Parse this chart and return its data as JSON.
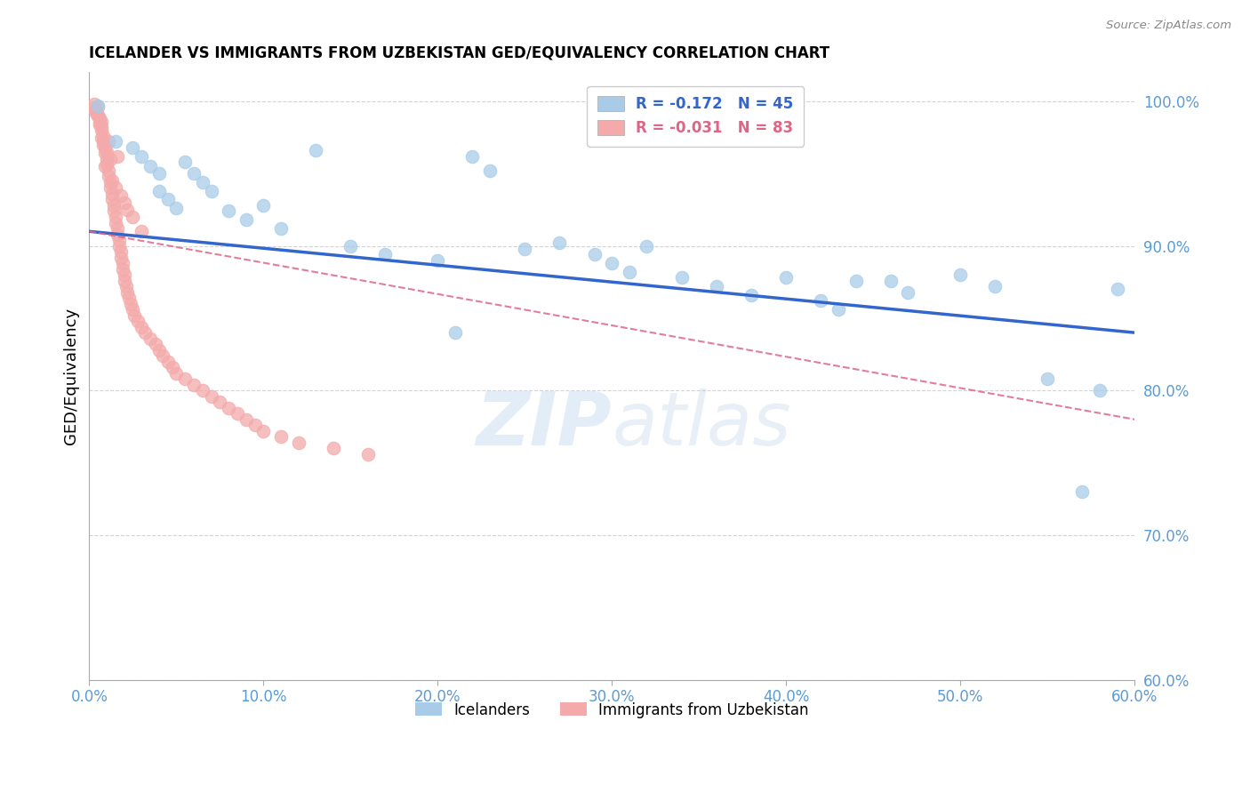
{
  "title": "ICELANDER VS IMMIGRANTS FROM UZBEKISTAN GED/EQUIVALENCY CORRELATION CHART",
  "source": "Source: ZipAtlas.com",
  "ylabel": "GED/Equivalency",
  "xmin": 0.0,
  "xmax": 0.6,
  "ymin": 0.6,
  "ymax": 1.02,
  "yticks": [
    0.6,
    0.7,
    0.8,
    0.9,
    1.0
  ],
  "xticks": [
    0.0,
    0.1,
    0.2,
    0.3,
    0.4,
    0.5,
    0.6
  ],
  "blue_label": "Icelanders",
  "pink_label": "Immigrants from Uzbekistan",
  "blue_R": "-0.172",
  "blue_N": "45",
  "pink_R": "-0.031",
  "pink_N": "83",
  "blue_color": "#A8CCE8",
  "pink_color": "#F4AAAA",
  "blue_line_color": "#3366CC",
  "pink_line_color": "#DD6688",
  "watermark_zip": "ZIP",
  "watermark_atlas": "atlas",
  "blue_scatter_x": [
    0.005,
    0.015,
    0.025,
    0.03,
    0.035,
    0.04,
    0.04,
    0.045,
    0.05,
    0.055,
    0.06,
    0.065,
    0.07,
    0.08,
    0.09,
    0.1,
    0.11,
    0.13,
    0.15,
    0.17,
    0.2,
    0.22,
    0.23,
    0.25,
    0.27,
    0.29,
    0.3,
    0.31,
    0.32,
    0.34,
    0.36,
    0.38,
    0.4,
    0.42,
    0.43,
    0.44,
    0.46,
    0.47,
    0.5,
    0.52,
    0.55,
    0.57,
    0.58,
    0.59,
    0.21
  ],
  "blue_scatter_y": [
    0.997,
    0.972,
    0.968,
    0.962,
    0.955,
    0.95,
    0.938,
    0.932,
    0.926,
    0.958,
    0.95,
    0.944,
    0.938,
    0.924,
    0.918,
    0.928,
    0.912,
    0.966,
    0.9,
    0.894,
    0.89,
    0.962,
    0.952,
    0.898,
    0.902,
    0.894,
    0.888,
    0.882,
    0.9,
    0.878,
    0.872,
    0.866,
    0.878,
    0.862,
    0.856,
    0.876,
    0.876,
    0.868,
    0.88,
    0.872,
    0.808,
    0.73,
    0.8,
    0.87,
    0.84
  ],
  "pink_scatter_x": [
    0.003,
    0.004,
    0.005,
    0.005,
    0.006,
    0.006,
    0.007,
    0.007,
    0.008,
    0.008,
    0.009,
    0.009,
    0.01,
    0.01,
    0.011,
    0.011,
    0.012,
    0.012,
    0.013,
    0.013,
    0.014,
    0.014,
    0.015,
    0.015,
    0.016,
    0.016,
    0.017,
    0.017,
    0.018,
    0.018,
    0.019,
    0.019,
    0.02,
    0.02,
    0.021,
    0.022,
    0.023,
    0.024,
    0.025,
    0.026,
    0.028,
    0.03,
    0.032,
    0.035,
    0.038,
    0.04,
    0.042,
    0.045,
    0.048,
    0.05,
    0.055,
    0.06,
    0.065,
    0.07,
    0.075,
    0.08,
    0.085,
    0.09,
    0.095,
    0.1,
    0.11,
    0.12,
    0.14,
    0.16,
    0.02,
    0.025,
    0.03,
    0.008,
    0.012,
    0.015,
    0.007,
    0.01,
    0.006,
    0.009,
    0.013,
    0.018,
    0.022,
    0.005,
    0.004,
    0.003,
    0.007,
    0.011,
    0.016
  ],
  "pink_scatter_y": [
    0.998,
    0.994,
    0.996,
    0.99,
    0.988,
    0.984,
    0.986,
    0.98,
    0.976,
    0.972,
    0.968,
    0.964,
    0.96,
    0.956,
    0.952,
    0.948,
    0.944,
    0.94,
    0.936,
    0.932,
    0.928,
    0.924,
    0.92,
    0.916,
    0.912,
    0.908,
    0.904,
    0.9,
    0.896,
    0.892,
    0.888,
    0.884,
    0.88,
    0.876,
    0.872,
    0.868,
    0.864,
    0.86,
    0.856,
    0.852,
    0.848,
    0.844,
    0.84,
    0.836,
    0.832,
    0.828,
    0.824,
    0.82,
    0.816,
    0.812,
    0.808,
    0.804,
    0.8,
    0.796,
    0.792,
    0.788,
    0.784,
    0.78,
    0.776,
    0.772,
    0.768,
    0.764,
    0.76,
    0.756,
    0.93,
    0.92,
    0.91,
    0.97,
    0.96,
    0.94,
    0.975,
    0.965,
    0.985,
    0.955,
    0.945,
    0.935,
    0.925,
    0.99,
    0.992,
    0.995,
    0.982,
    0.972,
    0.962
  ],
  "blue_line_x0": 0.0,
  "blue_line_x1": 0.6,
  "blue_line_y0": 0.91,
  "blue_line_y1": 0.84,
  "pink_line_x0": 0.0,
  "pink_line_x1": 0.6,
  "pink_line_y0": 0.91,
  "pink_line_y1": 0.78
}
